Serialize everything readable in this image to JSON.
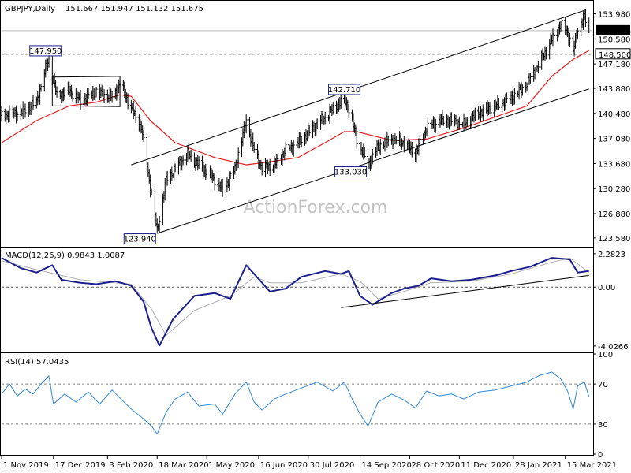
{
  "chart_data": [
    {
      "type": "candlestick",
      "title": "GBPJPY,Daily",
      "ohlc_label": "151.667 151.947 151.132 151.675",
      "current_price_label": "151.675",
      "level_line_label": "148.500",
      "level_line_value": 148.5,
      "ylim": [
        122.5,
        155.0
      ],
      "y_ticks": [
        "153.980",
        "150.580",
        "147.180",
        "143.880",
        "140.480",
        "137.080",
        "133.680",
        "130.280",
        "126.880",
        "123.580"
      ],
      "x_ticks": [
        "1 Nov 2019",
        "17 Dec 2019",
        "3 Feb 2020",
        "18 Mar 2020",
        "1 May 2020",
        "16 Jun 2020",
        "30 Jul 2020",
        "14 Sep 2020",
        "28 Oct 2020",
        "11 Dec 2020",
        "28 Jan 2021",
        "15 Mar 2021"
      ],
      "price_labels": [
        {
          "text": "147.950",
          "value": 147.95,
          "date": "2019-12-10"
        },
        {
          "text": "142.710",
          "value": 142.71,
          "date": "2020-08-31"
        },
        {
          "text": "133.030",
          "value": 133.03,
          "date": "2020-09-21"
        },
        {
          "text": "123.940",
          "value": 123.94,
          "date": "2020-03-18"
        }
      ],
      "close_path": [
        [
          "2019-11-01",
          140.2
        ],
        [
          "2019-11-18",
          140.6
        ],
        [
          "2019-12-02",
          142.0
        ],
        [
          "2019-12-10",
          146.5
        ],
        [
          "2019-12-13",
          147.9
        ],
        [
          "2019-12-20",
          142.8
        ],
        [
          "2019-12-31",
          143.6
        ],
        [
          "2020-01-10",
          142.2
        ],
        [
          "2020-01-24",
          143.4
        ],
        [
          "2020-02-07",
          142.6
        ],
        [
          "2020-02-14",
          144.5
        ],
        [
          "2020-02-24",
          141.2
        ],
        [
          "2020-03-04",
          138.5
        ],
        [
          "2020-03-12",
          130.5
        ],
        [
          "2020-03-18",
          124.5
        ],
        [
          "2020-03-26",
          131.5
        ],
        [
          "2020-04-03",
          133.0
        ],
        [
          "2020-04-14",
          135.0
        ],
        [
          "2020-04-24",
          133.5
        ],
        [
          "2020-05-08",
          131.5
        ],
        [
          "2020-05-15",
          130.0
        ],
        [
          "2020-05-26",
          133.0
        ],
        [
          "2020-06-05",
          139.5
        ],
        [
          "2020-06-12",
          135.5
        ],
        [
          "2020-06-19",
          133.0
        ],
        [
          "2020-06-30",
          133.5
        ],
        [
          "2020-07-10",
          135.5
        ],
        [
          "2020-07-21",
          136.5
        ],
        [
          "2020-08-03",
          138.5
        ],
        [
          "2020-08-14",
          140.0
        ],
        [
          "2020-08-24",
          141.5
        ],
        [
          "2020-08-31",
          142.5
        ],
        [
          "2020-09-04",
          141.0
        ],
        [
          "2020-09-11",
          137.0
        ],
        [
          "2020-09-21",
          133.5
        ],
        [
          "2020-09-30",
          136.0
        ],
        [
          "2020-10-12",
          137.0
        ],
        [
          "2020-10-23",
          136.5
        ],
        [
          "2020-11-02",
          135.0
        ],
        [
          "2020-11-12",
          138.5
        ],
        [
          "2020-11-23",
          139.5
        ],
        [
          "2020-12-04",
          139.5
        ],
        [
          "2020-12-15",
          139.0
        ],
        [
          "2020-12-28",
          140.5
        ],
        [
          "2021-01-12",
          141.5
        ],
        [
          "2021-01-26",
          142.5
        ],
        [
          "2021-02-09",
          144.5
        ],
        [
          "2021-02-19",
          147.0
        ],
        [
          "2021-03-03",
          150.5
        ],
        [
          "2021-03-11",
          152.5
        ],
        [
          "2021-03-17",
          151.5
        ],
        [
          "2021-03-22",
          148.8
        ],
        [
          "2021-03-26",
          152.0
        ],
        [
          "2021-04-01",
          153.5
        ],
        [
          "2021-04-05",
          151.7
        ]
      ],
      "ma_path": [
        [
          "2019-11-01",
          136.5
        ],
        [
          "2019-12-02",
          139.5
        ],
        [
          "2019-12-31",
          141.5
        ],
        [
          "2020-01-24",
          142.0
        ],
        [
          "2020-02-14",
          143.0
        ],
        [
          "2020-02-24",
          142.8
        ],
        [
          "2020-03-12",
          139.5
        ],
        [
          "2020-04-03",
          136.5
        ],
        [
          "2020-05-08",
          134.5
        ],
        [
          "2020-06-05",
          133.5
        ],
        [
          "2020-06-30",
          134.0
        ],
        [
          "2020-07-21",
          134.5
        ],
        [
          "2020-08-14",
          136.5
        ],
        [
          "2020-08-31",
          138.0
        ],
        [
          "2020-09-11",
          138.0
        ],
        [
          "2020-10-12",
          136.8
        ],
        [
          "2020-11-12",
          137.0
        ],
        [
          "2020-12-15",
          138.5
        ],
        [
          "2021-01-12",
          140.0
        ],
        [
          "2021-02-09",
          141.5
        ],
        [
          "2021-03-03",
          145.5
        ],
        [
          "2021-03-22",
          147.8
        ],
        [
          "2021-04-05",
          149.0
        ]
      ],
      "channel_upper": [
        [
          "2020-02-24",
          133.5
        ],
        [
          "2021-04-02",
          154.5
        ]
      ],
      "channel_lower": [
        [
          "2020-03-18",
          124.2
        ],
        [
          "2021-04-05",
          143.8
        ]
      ],
      "box": {
        "from": "2019-12-16",
        "to": "2020-02-14",
        "top": 145.4,
        "bottom": 141.4
      }
    },
    {
      "type": "line",
      "title": "MACD(12,26,9) 0.9843 1.0087",
      "y_ticks": [
        "2.2823",
        "0.00",
        "-4.0266"
      ],
      "ylim": [
        -4.3,
        2.6
      ],
      "series": [
        {
          "values": [
            [
              "2019-11-01",
              2.0
            ],
            [
              "2019-11-18",
              1.3
            ],
            [
              "2019-12-02",
              1.0
            ],
            [
              "2019-12-16",
              1.5
            ],
            [
              "2019-12-24",
              0.5
            ],
            [
              "2020-01-10",
              0.3
            ],
            [
              "2020-01-24",
              0.2
            ],
            [
              "2020-02-10",
              0.4
            ],
            [
              "2020-02-24",
              0.1
            ],
            [
              "2020-03-06",
              -1.0
            ],
            [
              "2020-03-13",
              -2.8
            ],
            [
              "2020-03-20",
              -4.0
            ],
            [
              "2020-04-01",
              -2.2
            ],
            [
              "2020-04-20",
              -0.6
            ],
            [
              "2020-05-08",
              -0.4
            ],
            [
              "2020-05-22",
              -0.8
            ],
            [
              "2020-06-05",
              1.5
            ],
            [
              "2020-06-12",
              0.9
            ],
            [
              "2020-06-26",
              -0.3
            ],
            [
              "2020-07-10",
              -0.1
            ],
            [
              "2020-07-24",
              0.7
            ],
            [
              "2020-08-14",
              1.1
            ],
            [
              "2020-08-28",
              0.9
            ],
            [
              "2020-09-04",
              1.1
            ],
            [
              "2020-09-14",
              -0.6
            ],
            [
              "2020-09-25",
              -1.2
            ],
            [
              "2020-10-12",
              -0.4
            ],
            [
              "2020-10-23",
              -0.1
            ],
            [
              "2020-11-05",
              0.1
            ],
            [
              "2020-11-16",
              0.6
            ],
            [
              "2020-12-04",
              0.4
            ],
            [
              "2020-12-21",
              0.5
            ],
            [
              "2021-01-12",
              0.8
            ],
            [
              "2021-01-26",
              1.1
            ],
            [
              "2021-02-12",
              1.4
            ],
            [
              "2021-03-03",
              2.0
            ],
            [
              "2021-03-19",
              1.9
            ],
            [
              "2021-03-26",
              1.0
            ],
            [
              "2021-04-05",
              1.1
            ]
          ]
        },
        {
          "values": [
            [
              "2019-11-01",
              1.8
            ],
            [
              "2019-12-02",
              1.2
            ],
            [
              "2020-01-10",
              0.5
            ],
            [
              "2020-02-24",
              0.2
            ],
            [
              "2020-03-13",
              -1.5
            ],
            [
              "2020-03-26",
              -3.3
            ],
            [
              "2020-04-20",
              -1.6
            ],
            [
              "2020-05-22",
              -0.6
            ],
            [
              "2020-06-12",
              0.7
            ],
            [
              "2020-06-26",
              0.3
            ],
            [
              "2020-07-24",
              0.3
            ],
            [
              "2020-08-28",
              0.9
            ],
            [
              "2020-09-14",
              0.4
            ],
            [
              "2020-09-30",
              -0.8
            ],
            [
              "2020-10-23",
              -0.3
            ],
            [
              "2020-11-16",
              0.3
            ],
            [
              "2020-12-21",
              0.4
            ],
            [
              "2021-01-26",
              0.9
            ],
            [
              "2021-03-03",
              1.7
            ],
            [
              "2021-03-19",
              2.0
            ],
            [
              "2021-04-05",
              1.0
            ]
          ]
        }
      ],
      "trend_line": [
        [
          "2020-08-28",
          -1.4
        ],
        [
          "2021-04-05",
          0.8
        ]
      ]
    },
    {
      "type": "line",
      "title": "RSI(14) 57.0435",
      "y_ticks": [
        "100",
        "70",
        "30",
        "0"
      ],
      "ylim": [
        0,
        100
      ],
      "levels": [
        70,
        30
      ],
      "series": [
        {
          "values": [
            [
              "2019-11-01",
              60
            ],
            [
              "2019-11-08",
              70
            ],
            [
              "2019-11-15",
              58
            ],
            [
              "2019-11-22",
              65
            ],
            [
              "2019-11-29",
              60
            ],
            [
              "2019-12-06",
              70
            ],
            [
              "2019-12-13",
              78
            ],
            [
              "2019-12-17",
              50
            ],
            [
              "2019-12-27",
              60
            ],
            [
              "2020-01-06",
              52
            ],
            [
              "2020-01-17",
              62
            ],
            [
              "2020-01-27",
              50
            ],
            [
              "2020-02-07",
              64
            ],
            [
              "2020-02-14",
              56
            ],
            [
              "2020-02-24",
              45
            ],
            [
              "2020-03-06",
              35
            ],
            [
              "2020-03-13",
              28
            ],
            [
              "2020-03-18",
              20
            ],
            [
              "2020-03-26",
              42
            ],
            [
              "2020-04-03",
              55
            ],
            [
              "2020-04-14",
              62
            ],
            [
              "2020-04-24",
              48
            ],
            [
              "2020-05-08",
              50
            ],
            [
              "2020-05-15",
              40
            ],
            [
              "2020-05-26",
              60
            ],
            [
              "2020-06-05",
              72
            ],
            [
              "2020-06-12",
              52
            ],
            [
              "2020-06-19",
              44
            ],
            [
              "2020-06-30",
              55
            ],
            [
              "2020-07-10",
              60
            ],
            [
              "2020-07-24",
              66
            ],
            [
              "2020-08-07",
              72
            ],
            [
              "2020-08-21",
              63
            ],
            [
              "2020-08-31",
              72
            ],
            [
              "2020-09-07",
              55
            ],
            [
              "2020-09-14",
              40
            ],
            [
              "2020-09-21",
              28
            ],
            [
              "2020-09-30",
              52
            ],
            [
              "2020-10-12",
              60
            ],
            [
              "2020-10-23",
              54
            ],
            [
              "2020-11-02",
              46
            ],
            [
              "2020-11-12",
              63
            ],
            [
              "2020-11-23",
              58
            ],
            [
              "2020-12-04",
              60
            ],
            [
              "2020-12-15",
              55
            ],
            [
              "2020-12-28",
              62
            ],
            [
              "2021-01-12",
              64
            ],
            [
              "2021-01-26",
              68
            ],
            [
              "2021-02-09",
              72
            ],
            [
              "2021-02-19",
              78
            ],
            [
              "2021-03-03",
              82
            ],
            [
              "2021-03-11",
              75
            ],
            [
              "2021-03-17",
              63
            ],
            [
              "2021-03-22",
              45
            ],
            [
              "2021-03-26",
              68
            ],
            [
              "2021-04-01",
              72
            ],
            [
              "2021-04-05",
              57
            ]
          ]
        }
      ]
    }
  ],
  "watermark": "ActionForex.com",
  "colors": {
    "candle": "#000000",
    "ma": "#e21f1f",
    "macd": "#1a1f8c",
    "signal": "#b0b0b0",
    "rsi": "#3288d8",
    "label_border": "#1a1f8c",
    "current_price_bg": "#000000"
  }
}
